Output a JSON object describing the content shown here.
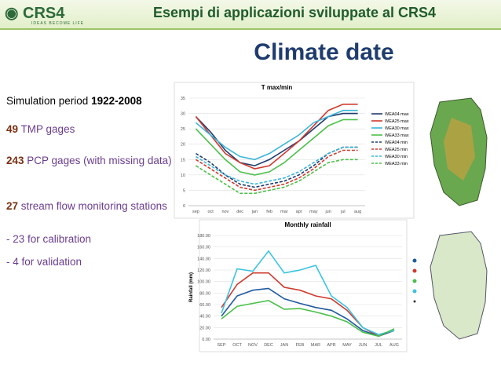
{
  "header": {
    "logo": "CRS4",
    "tagline": "IDEAS BECOME LIFE",
    "title": "Esempi di applicazioni sviluppate al CRS4"
  },
  "heading": "Climate date",
  "text": [
    [
      "Simulation period ",
      "1922-2008"
    ],
    [
      "49",
      " TMP gages"
    ],
    [
      "243",
      " PCP gages (with missing data)"
    ],
    [
      "27",
      " stream flow monitoring stations"
    ],
    [
      "-  23 for calibration"
    ],
    [
      "-  4 for validation"
    ]
  ],
  "chart_data": [
    {
      "type": "line",
      "title": "T max/min",
      "categories": [
        "sep",
        "oct",
        "nov",
        "dec",
        "jan",
        "feb",
        "mar",
        "apr",
        "may",
        "jun",
        "jul",
        "aug"
      ],
      "ylim": [
        0,
        35
      ],
      "yticks": [
        0,
        5,
        10,
        15,
        20,
        25,
        30,
        35
      ],
      "grid": true,
      "series": [
        {
          "name": "WEA04 max",
          "color": "#1f3c6e",
          "values": [
            29,
            24,
            18,
            14,
            13,
            15,
            18,
            21,
            25,
            29,
            30,
            30
          ]
        },
        {
          "name": "WEA25 max",
          "color": "#d03a2f",
          "values": [
            29,
            23,
            17,
            14,
            12,
            13,
            17,
            21,
            26,
            31,
            33,
            33
          ]
        },
        {
          "name": "WEA30 max",
          "color": "#3cb6d8",
          "values": [
            27,
            23,
            19,
            16,
            15,
            17,
            20,
            23,
            27,
            29,
            31,
            31
          ]
        },
        {
          "name": "WEA33 max",
          "color": "#4cc04a",
          "values": [
            25,
            20,
            15,
            11,
            10,
            11,
            14,
            18,
            22,
            26,
            28,
            28
          ]
        },
        {
          "name": "WEA04 min",
          "color": "#1f3c6e",
          "dashed": true,
          "values": [
            17,
            14,
            10,
            7,
            6,
            7,
            8,
            10,
            13,
            17,
            19,
            19
          ]
        },
        {
          "name": "WEA25 min",
          "color": "#d03a2f",
          "dashed": true,
          "values": [
            15,
            12,
            9,
            6,
            5,
            6,
            7,
            9,
            12,
            16,
            18,
            18
          ]
        },
        {
          "name": "WEA30 min",
          "color": "#3cb6d8",
          "dashed": true,
          "values": [
            16,
            13,
            10,
            8,
            7,
            8,
            9,
            11,
            14,
            17,
            19,
            19
          ]
        },
        {
          "name": "WEA33 min",
          "color": "#4cc04a",
          "dashed": true,
          "values": [
            13,
            10,
            7,
            4,
            4,
            5,
            6,
            8,
            11,
            14,
            15,
            15
          ]
        }
      ]
    },
    {
      "type": "line",
      "title": "Monthly rainfall",
      "y_label": "Rainfall (mm)",
      "categories": [
        "SEP",
        "OCT",
        "NOV",
        "DEC",
        "JAN",
        "FEB",
        "MAR",
        "APR",
        "MAY",
        "JUN",
        "JUL",
        "AUG"
      ],
      "ylim": [
        0,
        180
      ],
      "yticks": [
        {
          "value": 0,
          "label": "0.00"
        },
        {
          "value": 20,
          "label": "20.00"
        },
        {
          "value": 40,
          "label": "40.00"
        },
        {
          "value": 60,
          "label": "60.00"
        },
        {
          "value": 80,
          "label": "80.00"
        },
        {
          "value": 100,
          "label": "100.00"
        },
        {
          "value": 120,
          "label": "120.00"
        },
        {
          "value": 140,
          "label": "140.00"
        },
        {
          "value": 160,
          "label": "160.00"
        },
        {
          "value": 180,
          "label": "180.00"
        }
      ],
      "grid": true,
      "series": [
        {
          "color": "#d03a2f",
          "values": [
            55,
            95,
            115,
            115,
            90,
            85,
            75,
            70,
            50,
            20,
            5,
            15
          ]
        },
        {
          "color": "#1f5a9e",
          "values": [
            40,
            75,
            85,
            88,
            70,
            62,
            55,
            50,
            35,
            15,
            5,
            15
          ]
        },
        {
          "color": "#3cc4e0",
          "values": [
            45,
            122,
            118,
            153,
            115,
            120,
            128,
            75,
            55,
            20,
            8,
            15
          ]
        },
        {
          "color": "#4cc04a",
          "values": [
            35,
            57,
            62,
            67,
            52,
            53,
            47,
            40,
            30,
            12,
            5,
            18
          ]
        }
      ]
    }
  ]
}
